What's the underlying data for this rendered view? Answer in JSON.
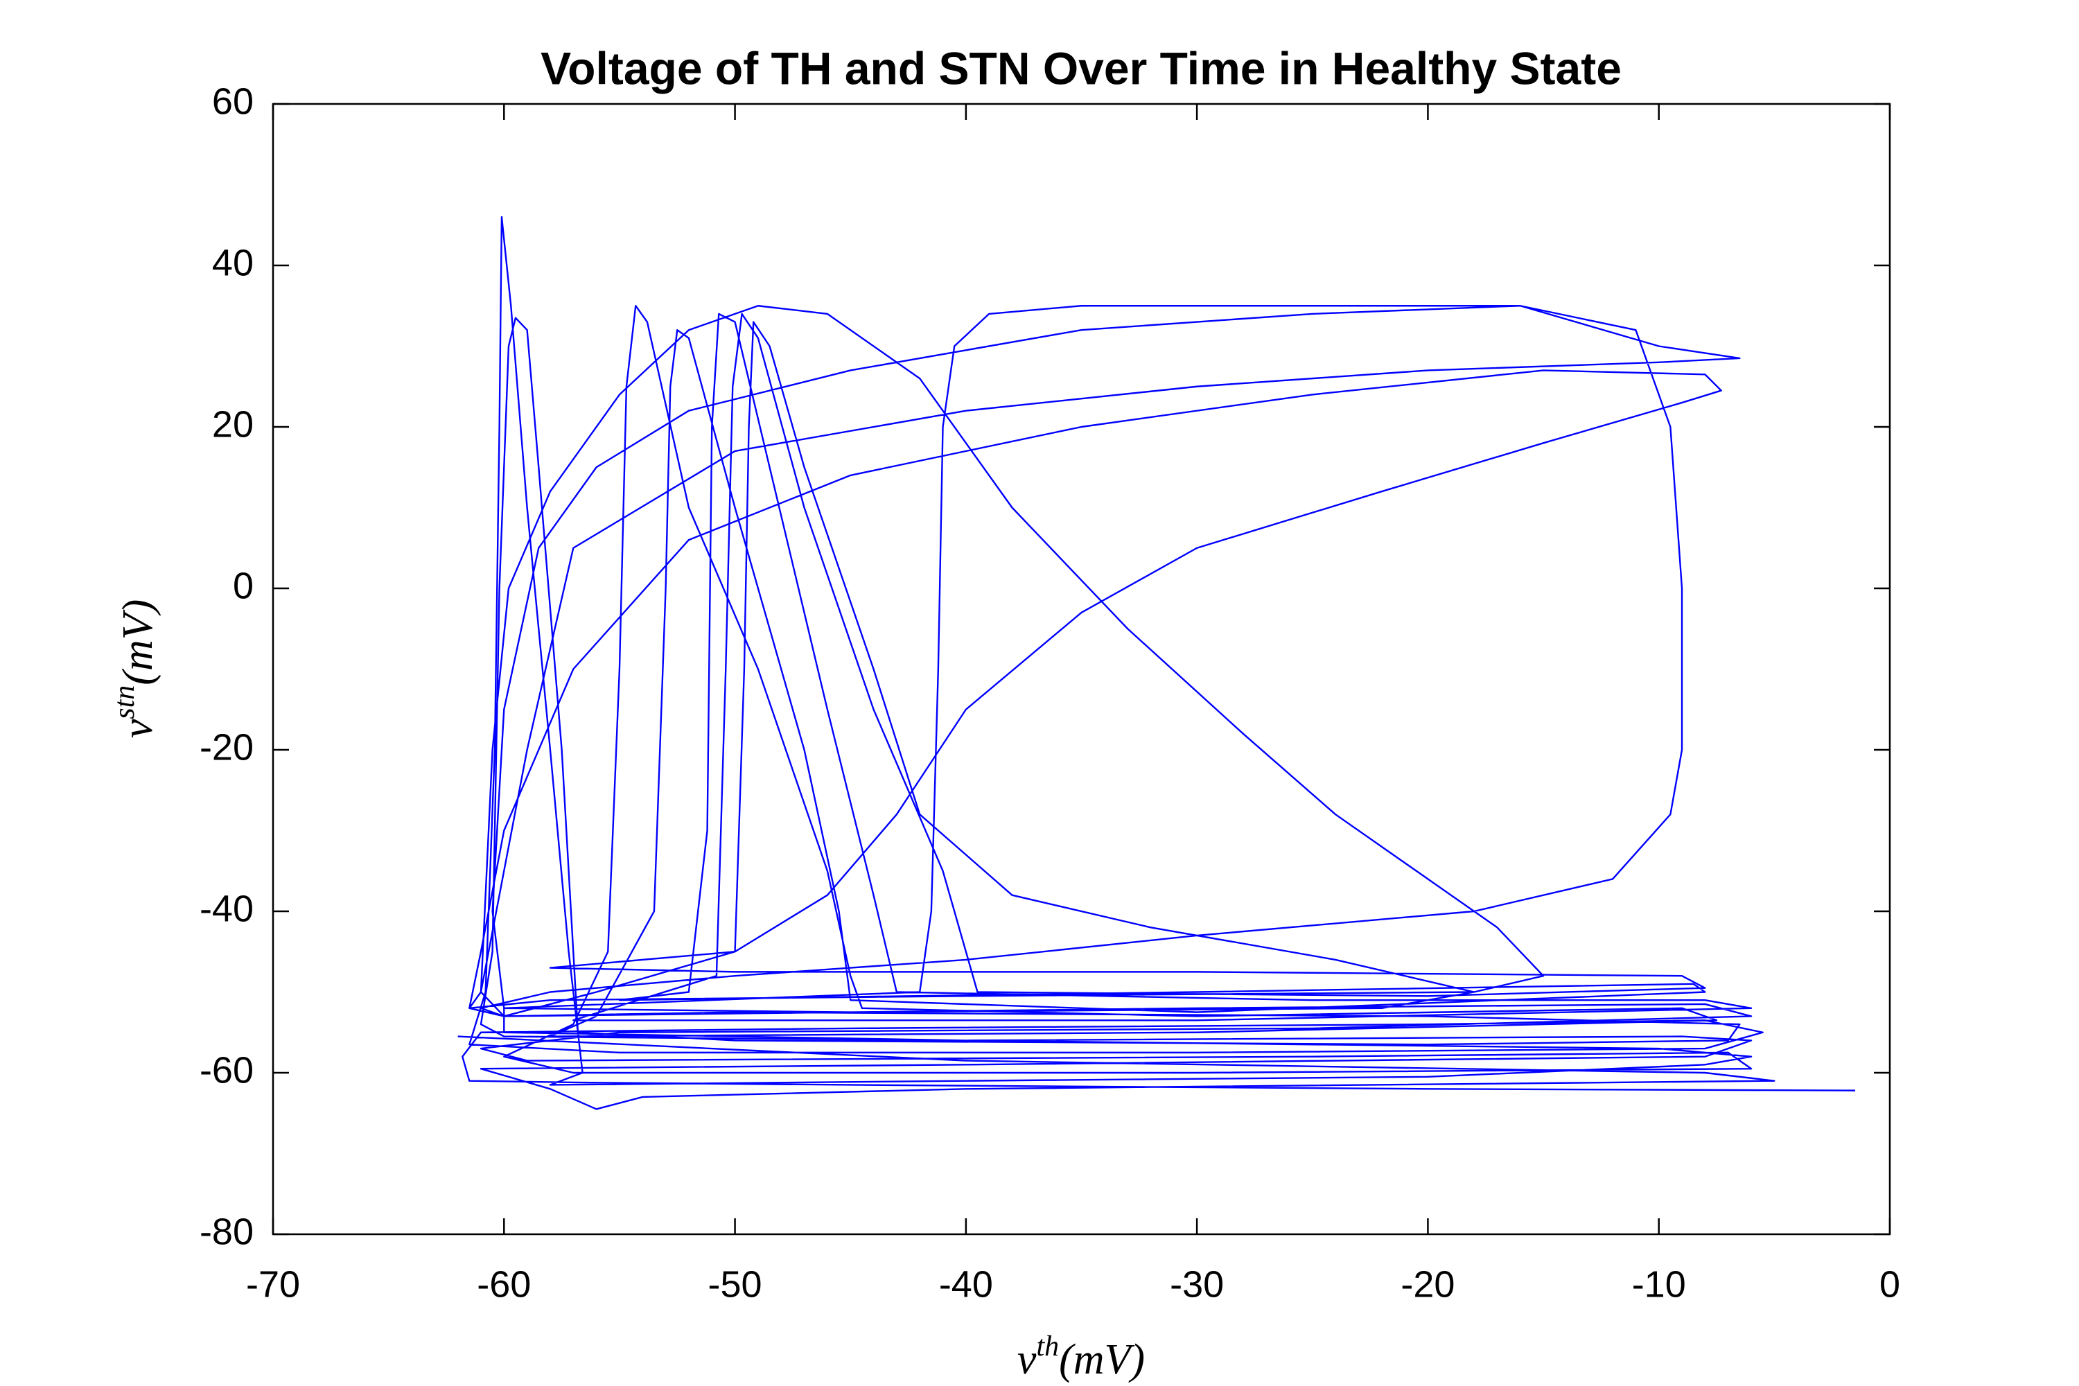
{
  "chart_data": {
    "type": "line",
    "title": "Voltage of TH and STN Over Time in Healthy State",
    "xlabel": {
      "base": "v",
      "sup": "th",
      "unit": "(mV)"
    },
    "ylabel": {
      "base": "v",
      "sup": "stn",
      "unit": "(mV)"
    },
    "color": "#0000ff",
    "xlim": [
      -70,
      0
    ],
    "ylim": [
      -80,
      60
    ],
    "xticks": [
      -70,
      -60,
      -50,
      -40,
      -30,
      -20,
      -10,
      0
    ],
    "yticks": [
      -80,
      -60,
      -40,
      -20,
      0,
      20,
      40,
      60
    ],
    "grid": false,
    "x": [
      -1.5,
      -20,
      -45,
      -57,
      -61.5,
      -61.8,
      -61,
      -45,
      -20,
      -8,
      -5.5,
      -8,
      -30,
      -55,
      -61.5,
      -60.8,
      -60.4,
      -60.2,
      -60.1,
      -59.7,
      -59,
      -58,
      -57.2,
      -56.8,
      -56.6,
      -58,
      -40,
      -20,
      -8,
      -6,
      -10,
      -40,
      -60,
      -61,
      -60.5,
      -60.2,
      -59.8,
      -59.5,
      -59,
      -58.5,
      -57.5,
      -57,
      -56.8,
      -50,
      -20,
      -7,
      -6.5,
      -20,
      -50,
      -60,
      -61,
      -60.5,
      -59.8,
      -58,
      -55,
      -52,
      -49,
      -46,
      -42,
      -38,
      -33,
      -28,
      -24,
      -20,
      -17,
      -15,
      -18,
      -40,
      -58,
      -61.5,
      -60,
      -30,
      -8,
      -6,
      -25,
      -55,
      -61,
      -59,
      -25,
      -7,
      -6,
      -30,
      -57,
      -60,
      -57,
      -55.5,
      -55,
      -54.7,
      -54.3,
      -53.8,
      -52,
      -49,
      -46,
      -45,
      -44.5,
      -30,
      -9,
      -7.5,
      -30,
      -58,
      -56,
      -53.5,
      -53,
      -52.8,
      -52.5,
      -52,
      -50,
      -47,
      -45.5,
      -45,
      -30,
      -8,
      -8.5,
      -30,
      -55,
      -52,
      -51.2,
      -51,
      -50.7,
      -50,
      -48.5,
      -46,
      -44,
      -43,
      -25,
      -8,
      -6,
      -30,
      -57,
      -50.8,
      -50.4,
      -50.1,
      -49.7,
      -49,
      -47,
      -44,
      -41,
      -39.5,
      -20,
      -8,
      -9,
      -30,
      -50,
      -58,
      -50,
      -49.6,
      -49.4,
      -49.2,
      -48.5,
      -47,
      -44,
      -42,
      -38,
      -32,
      -24,
      -18,
      -22,
      -45,
      -60,
      -42,
      -41.5,
      -41.2,
      -41,
      -40.5,
      -39,
      -35,
      -25,
      -16,
      -11,
      -9.5,
      -9,
      -9,
      -9.5,
      -12,
      -18,
      -30,
      -40,
      -50,
      -58,
      -61,
      -60,
      -56,
      -50,
      -46,
      -43,
      -40,
      -35,
      -30,
      -22,
      -15,
      -9,
      -7.3,
      -8,
      -15,
      -25,
      -35,
      -45,
      -52,
      -57,
      -60,
      -61,
      -61.5,
      -61,
      -59,
      -57,
      -50,
      -40,
      -30,
      -20,
      -10,
      -6.5,
      -10,
      -16,
      -25,
      -35,
      -45,
      -52,
      -56,
      -58.5,
      -60,
      -60.5,
      -60,
      -60,
      -40,
      -9,
      -6,
      -8,
      -40,
      -61,
      -58,
      -56,
      -54,
      -40,
      -5,
      -8,
      -40,
      -62
    ],
    "values": [
      -62.2,
      -62,
      -61.5,
      -61.2,
      -61,
      -58,
      -55,
      -54.5,
      -54,
      -53.5,
      -55,
      -57,
      -57.5,
      -57.5,
      -56.5,
      -50,
      -20,
      20,
      46,
      35,
      10,
      -20,
      -45,
      -55,
      -60,
      -61.5,
      -61,
      -60.5,
      -59,
      -58,
      -57,
      -56,
      -55.5,
      -54,
      -45,
      0,
      30,
      33.5,
      32,
      15,
      -20,
      -45,
      -55,
      -56,
      -56.5,
      -56,
      -54,
      -53,
      -52.5,
      -53,
      -50,
      -20,
      0,
      12,
      24,
      32,
      35,
      34,
      26,
      10,
      -5,
      -18,
      -28,
      -36,
      -42,
      -48,
      -50,
      -50.5,
      -51,
      -52,
      -53,
      -52,
      -51.5,
      -53,
      -54.5,
      -55,
      -57,
      -58.5,
      -58,
      -57.5,
      -59.5,
      -60,
      -60,
      -58,
      -54,
      -45,
      -10,
      25,
      35,
      33,
      10,
      -10,
      -35,
      -48,
      -52,
      -53,
      -52,
      -53.5,
      -55,
      -55.5,
      -53,
      -40,
      0,
      25,
      32,
      31,
      10,
      -20,
      -40,
      -51,
      -52.5,
      -50,
      -49,
      -50,
      -51,
      -50,
      -30,
      20,
      34,
      33,
      15,
      -15,
      -38,
      -50,
      -51,
      -51,
      -52,
      -53.5,
      -53.5,
      -48,
      -10,
      25,
      34,
      31,
      10,
      -15,
      -35,
      -50,
      -50.5,
      -49.5,
      -48,
      -47.5,
      -47.5,
      -47,
      -45,
      -10,
      20,
      33,
      30,
      15,
      -10,
      -28,
      -38,
      -42,
      -46,
      -50,
      -52,
      -52.5,
      -52,
      -50,
      -40,
      -10,
      20,
      30,
      34,
      35,
      35,
      35,
      32,
      20,
      0,
      -20,
      -28,
      -36,
      -40,
      -43,
      -46,
      -48,
      -50,
      -52,
      -53,
      -50,
      -45,
      -38,
      -28,
      -15,
      -3,
      5,
      12,
      18,
      23,
      24.5,
      26.5,
      27,
      24,
      20,
      14,
      6,
      -10,
      -30,
      -45,
      -52,
      -50,
      -20,
      5,
      17,
      22,
      25,
      27,
      28,
      28.5,
      30,
      35,
      34,
      32,
      27,
      22,
      15,
      5,
      -15,
      -40,
      -52,
      -55,
      -56,
      -55.5,
      -56,
      -58,
      -59,
      -59.5,
      -62,
      -64.5,
      -63,
      -62,
      -61,
      -60,
      -58.5,
      -55.5
    ]
  }
}
